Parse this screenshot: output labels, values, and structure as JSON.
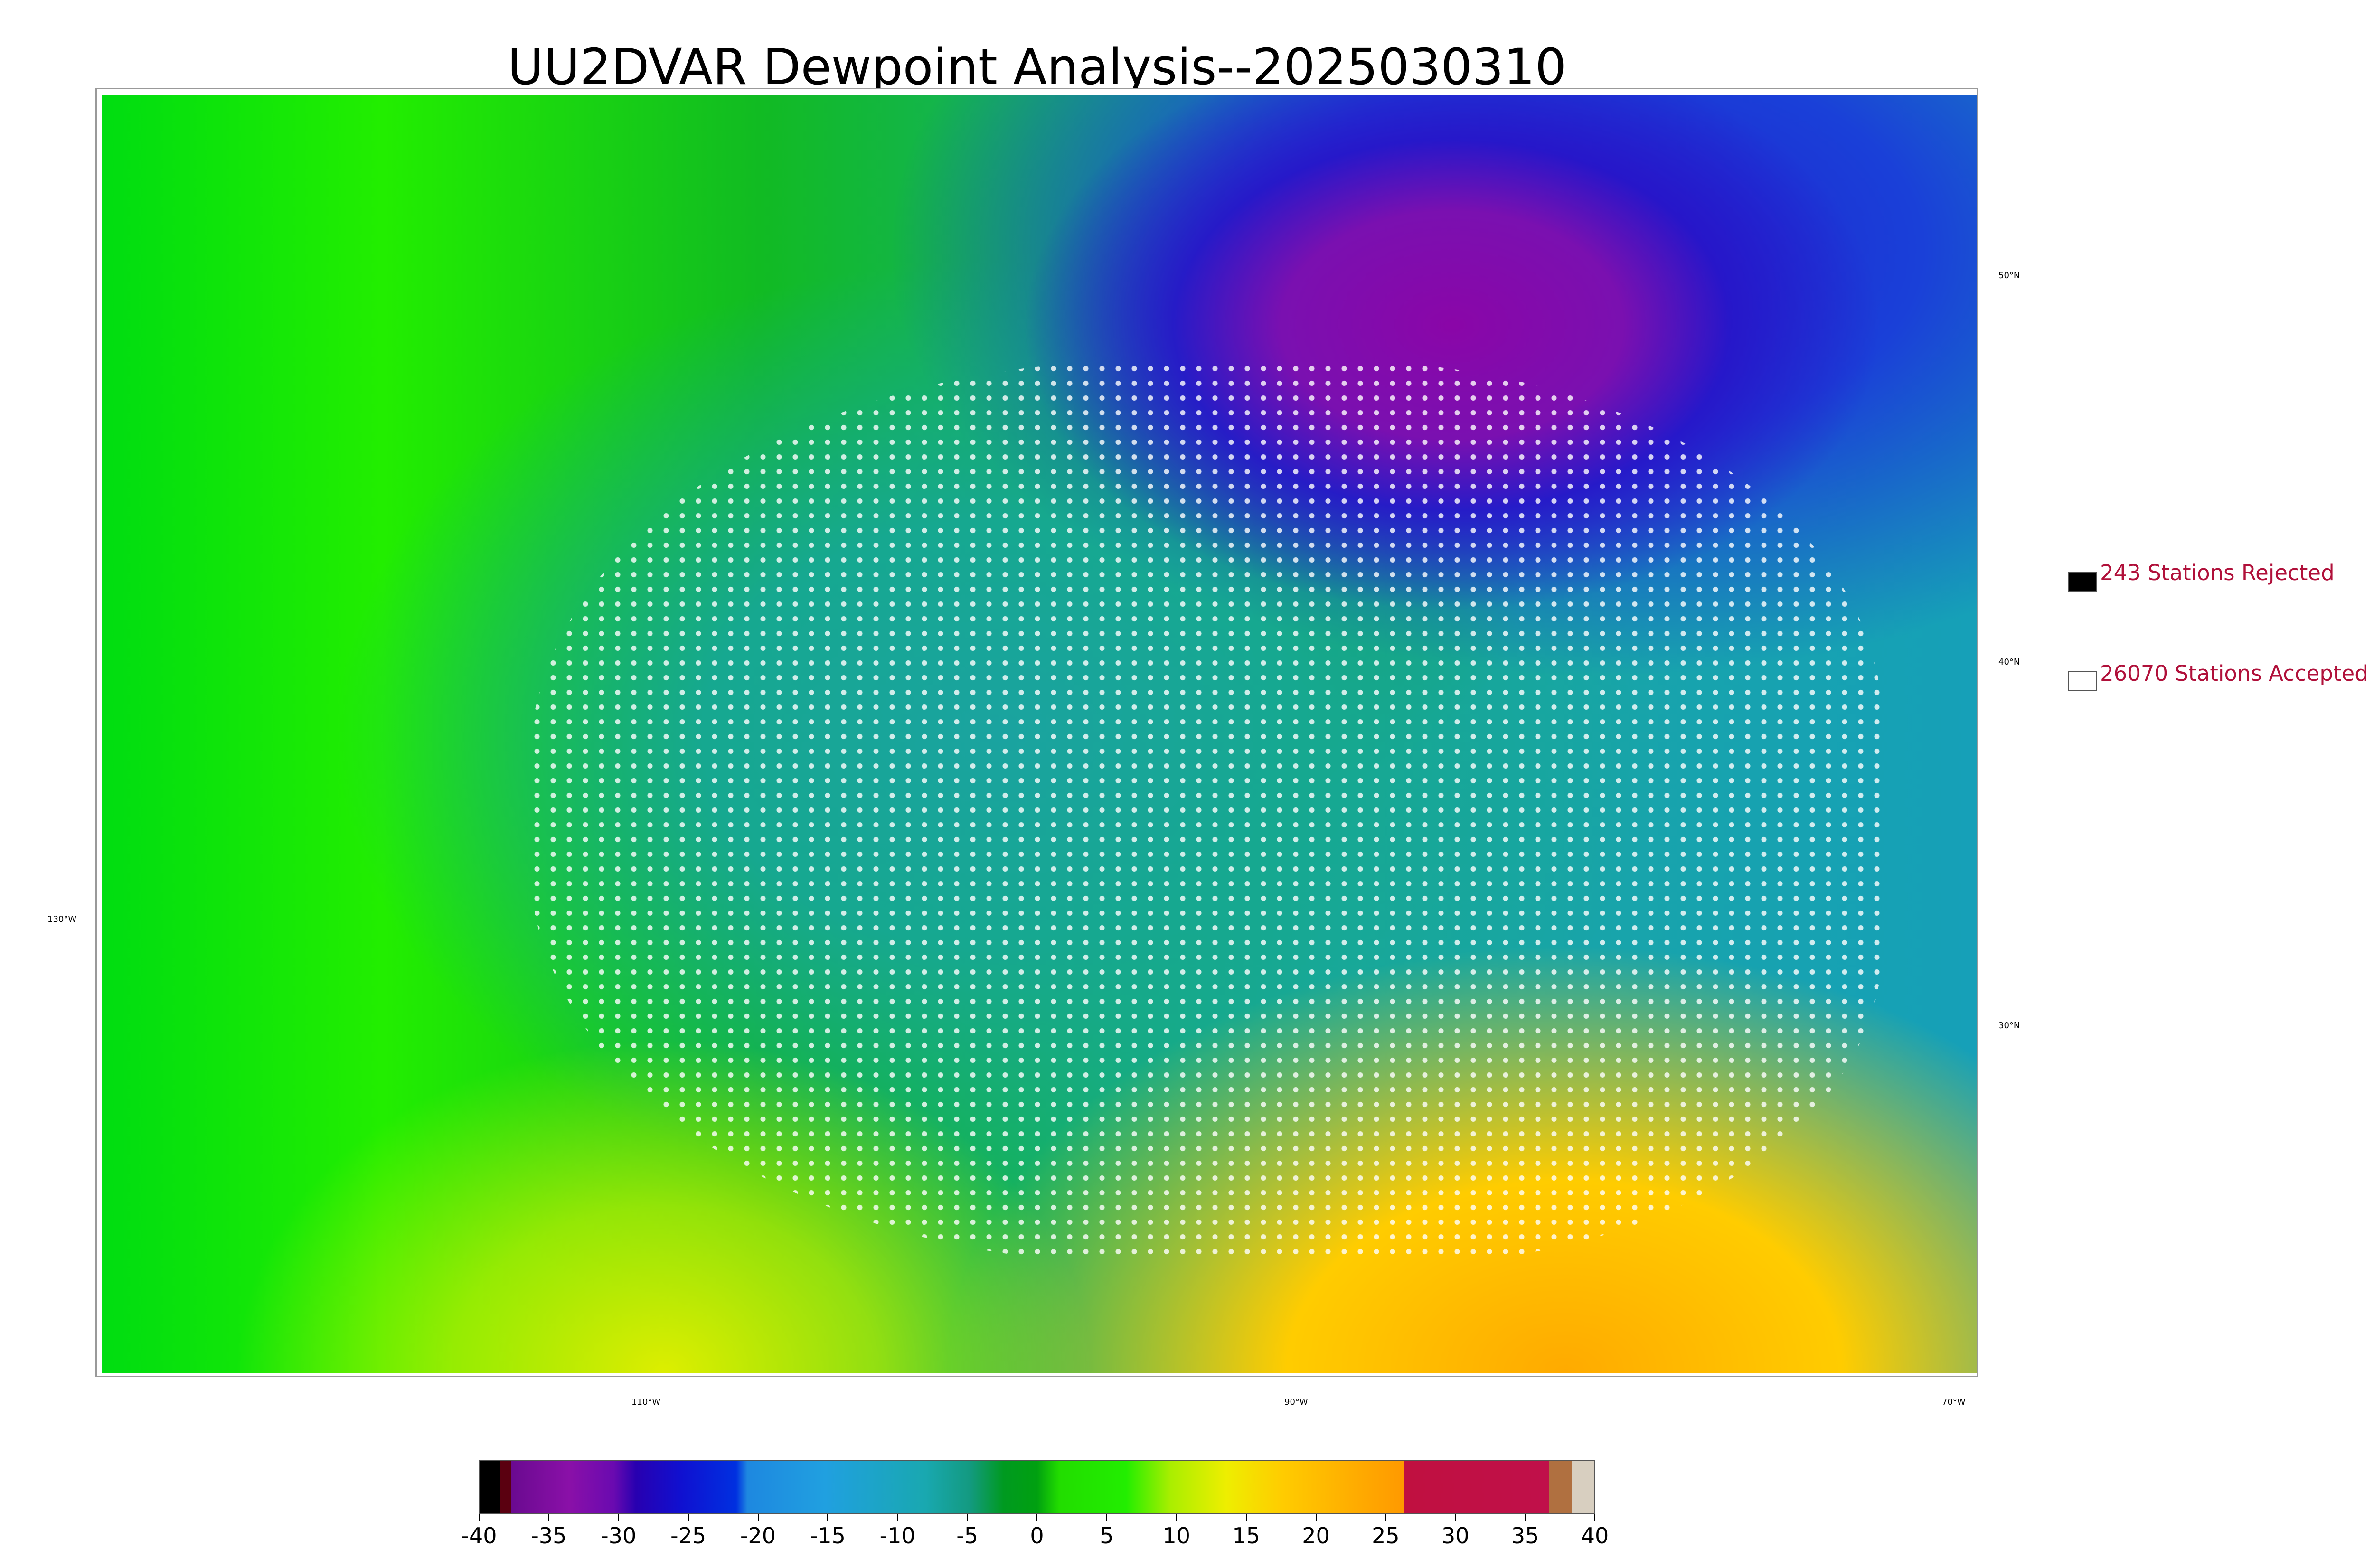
{
  "title": "UU2DVAR Dewpoint Analysis--2025030310",
  "legend": {
    "rejected": "243 Stations Rejected",
    "accepted": "26070 Stations Accepted"
  },
  "colorbar": {
    "ticks": [
      -40,
      -35,
      -30,
      -25,
      -20,
      -15,
      -10,
      -5,
      0,
      5,
      10,
      15,
      20,
      25,
      30,
      35,
      40
    ]
  },
  "graticule": {
    "latitude": [
      "50°N",
      "40°N",
      "30°N"
    ],
    "longitude": [
      "130°W",
      "110°W",
      "90°W",
      "70°W"
    ]
  }
}
